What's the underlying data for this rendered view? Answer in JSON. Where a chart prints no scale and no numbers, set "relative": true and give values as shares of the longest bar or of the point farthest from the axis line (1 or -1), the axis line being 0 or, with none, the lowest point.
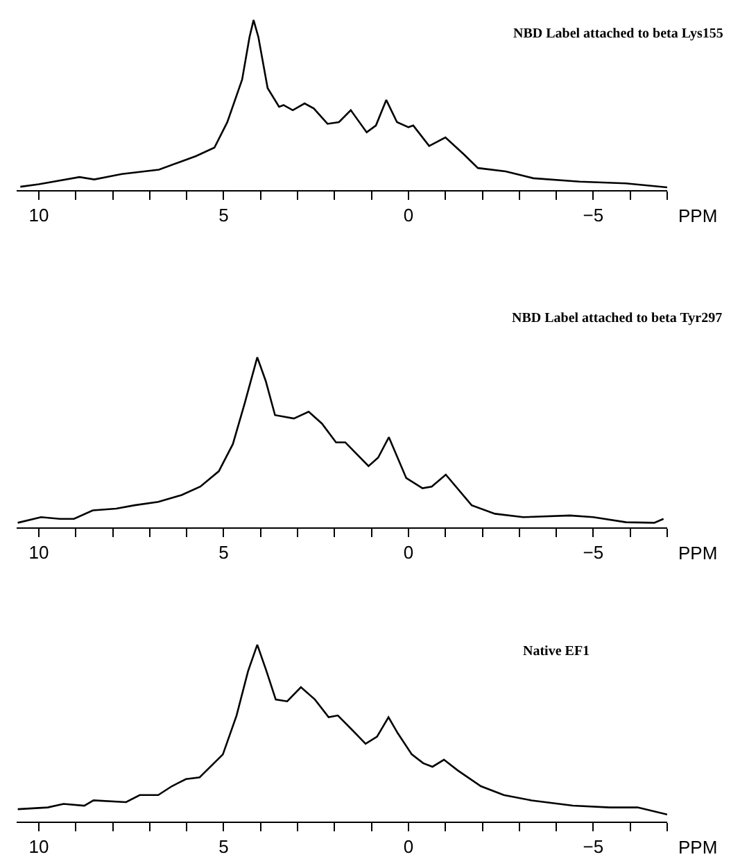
{
  "chart_data": [
    {
      "type": "line",
      "title": "NBD Label attached to beta Lys155",
      "xlabel": "PPM",
      "relative": true,
      "color": "#000000",
      "line_style": "solid",
      "marker": "none",
      "xlim": [
        10.6,
        -7
      ],
      "xticks": [
        10,
        {
          "value": 9,
          "label": null
        },
        {
          "value": 8,
          "label": null
        },
        {
          "value": 7,
          "label": null
        },
        {
          "value": 6,
          "label": null
        },
        5,
        {
          "value": 4,
          "label": null
        },
        {
          "value": 3,
          "label": null
        },
        {
          "value": 2,
          "label": null
        },
        {
          "value": 1,
          "label": null
        },
        0,
        {
          "value": -1,
          "label": null
        },
        {
          "value": -2,
          "label": null
        },
        {
          "value": -3,
          "label": null
        },
        {
          "value": -4,
          "label": null
        },
        -5,
        {
          "value": -6,
          "label": null
        },
        {
          "value": -7,
          "label": null
        }
      ],
      "x": [
        10.5,
        10,
        8.9,
        8.5,
        7.75,
        6.75,
        6.25,
        5.75,
        5.25,
        4.9,
        4.5,
        4.3,
        4.19,
        4.06,
        3.81,
        3.5,
        3.38,
        3.13,
        2.81,
        2.56,
        2.19,
        1.88,
        1.56,
        1.13,
        0.88,
        0.6,
        0.31,
        0,
        -0.13,
        -0.56,
        -1,
        -1.5,
        -1.88,
        -2.63,
        -3.38,
        -4.63,
        -5.88,
        -7
      ],
      "values": [
        0.02,
        0.035,
        0.077,
        0.063,
        0.095,
        0.12,
        0.16,
        0.2,
        0.25,
        0.4,
        0.65,
        0.9,
        1.0,
        0.9,
        0.6,
        0.49,
        0.5,
        0.47,
        0.51,
        0.48,
        0.39,
        0.4,
        0.47,
        0.34,
        0.38,
        0.53,
        0.4,
        0.37,
        0.38,
        0.26,
        0.31,
        0.21,
        0.13,
        0.11,
        0.07,
        0.05,
        0.04,
        0.016
      ]
    },
    {
      "type": "line",
      "title": "NBD Label attached to beta Tyr297",
      "xlabel": "PPM",
      "relative": true,
      "color": "#000000",
      "line_style": "solid",
      "marker": "none",
      "xlim": [
        10.6,
        -7
      ],
      "xticks": [
        10,
        {
          "value": 9,
          "label": null
        },
        {
          "value": 8,
          "label": null
        },
        {
          "value": 7,
          "label": null
        },
        {
          "value": 6,
          "label": null
        },
        5,
        {
          "value": 4,
          "label": null
        },
        {
          "value": 3,
          "label": null
        },
        {
          "value": 2,
          "label": null
        },
        {
          "value": 1,
          "label": null
        },
        0,
        {
          "value": -1,
          "label": null
        },
        {
          "value": -2,
          "label": null
        },
        {
          "value": -3,
          "label": null
        },
        {
          "value": -4,
          "label": null
        },
        -5,
        {
          "value": -6,
          "label": null
        },
        {
          "value": -7,
          "label": null
        }
      ],
      "x": [
        10.57,
        9.94,
        9.43,
        9.05,
        8.54,
        7.91,
        7.41,
        6.77,
        6.14,
        5.63,
        5.13,
        4.75,
        4.43,
        4.09,
        3.86,
        3.61,
        3.1,
        2.7,
        2.34,
        1.96,
        1.71,
        1.08,
        0.82,
        0.53,
        0.06,
        -0.38,
        -0.63,
        -1.01,
        -1.71,
        -2.34,
        -3.1,
        -4.37,
        -5.0,
        -5.89,
        -6.65,
        -6.9
      ],
      "values": [
        0.027,
        0.06,
        0.05,
        0.05,
        0.1,
        0.11,
        0.13,
        0.15,
        0.19,
        0.24,
        0.33,
        0.49,
        0.73,
        1.0,
        0.86,
        0.66,
        0.64,
        0.68,
        0.61,
        0.5,
        0.5,
        0.36,
        0.41,
        0.53,
        0.29,
        0.23,
        0.24,
        0.31,
        0.13,
        0.08,
        0.06,
        0.07,
        0.06,
        0.03,
        0.027,
        0.05
      ]
    },
    {
      "type": "line",
      "title": "Native EF1",
      "xlabel": "PPM",
      "relative": true,
      "color": "#000000",
      "line_style": "solid",
      "marker": "none",
      "xlim": [
        10.6,
        -7
      ],
      "xticks": [
        10,
        {
          "value": 9,
          "label": null
        },
        {
          "value": 8,
          "label": null
        },
        {
          "value": 7,
          "label": null
        },
        {
          "value": 6,
          "label": null
        },
        5,
        {
          "value": 4,
          "label": null
        },
        {
          "value": 3,
          "label": null
        },
        {
          "value": 2,
          "label": null
        },
        {
          "value": 1,
          "label": null
        },
        0,
        {
          "value": -1,
          "label": null
        },
        {
          "value": -2,
          "label": null
        },
        {
          "value": -3,
          "label": null
        },
        {
          "value": -4,
          "label": null
        },
        -5,
        {
          "value": -6,
          "label": null
        },
        {
          "value": -7,
          "label": null
        }
      ],
      "x": [
        10.57,
        9.76,
        9.33,
        8.77,
        8.52,
        7.64,
        7.27,
        6.77,
        6.4,
        6.02,
        5.65,
        5.02,
        4.65,
        4.34,
        4.09,
        3.84,
        3.59,
        3.28,
        2.91,
        2.53,
        2.16,
        1.91,
        1.53,
        1.16,
        0.85,
        0.54,
        0.29,
        -0.09,
        -0.4,
        -0.65,
        -0.96,
        -1.33,
        -1.96,
        -2.58,
        -3.33,
        -4.45,
        -5.45,
        -6.2,
        -7.0
      ],
      "values": [
        0.07,
        0.08,
        0.1,
        0.09,
        0.12,
        0.11,
        0.15,
        0.15,
        0.2,
        0.24,
        0.25,
        0.38,
        0.6,
        0.85,
        1.0,
        0.85,
        0.69,
        0.68,
        0.76,
        0.69,
        0.59,
        0.6,
        0.52,
        0.44,
        0.48,
        0.59,
        0.5,
        0.38,
        0.33,
        0.31,
        0.35,
        0.29,
        0.2,
        0.15,
        0.12,
        0.09,
        0.08,
        0.08,
        0.04
      ]
    }
  ]
}
